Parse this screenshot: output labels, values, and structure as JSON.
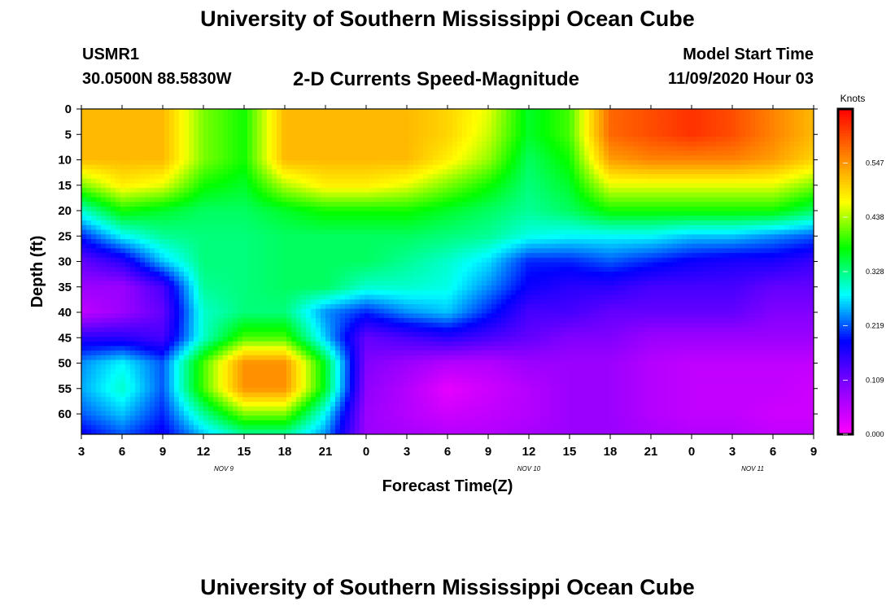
{
  "header": {
    "title": "University of Southern Mississippi Ocean Cube",
    "station": "USMR1",
    "coords": "30.0500N 88.5830W",
    "subtitle": "2-D Currents Speed-Magnitude",
    "start_label": "Model Start Time",
    "start_value": "11/09/2020 Hour 03"
  },
  "footer": {
    "title": "University of Southern Mississippi Ocean Cube"
  },
  "chart_data": {
    "type": "heatmap",
    "title": "2-D Currents Speed-Magnitude",
    "xlabel": "Forecast Time(Z)",
    "ylabel": "Depth (ft)",
    "x_tick_labels": [
      "3",
      "6",
      "9",
      "12",
      "15",
      "18",
      "21",
      "0",
      "3",
      "6",
      "9",
      "12",
      "15",
      "18",
      "21",
      "0",
      "3",
      "6",
      "9"
    ],
    "day_labels": [
      {
        "label": "NOV  9",
        "tick_index": 3.5
      },
      {
        "label": "NOV  10",
        "tick_index": 11
      },
      {
        "label": "NOV  11",
        "tick_index": 16.5
      }
    ],
    "y_ticks": [
      0,
      5,
      10,
      15,
      20,
      25,
      30,
      35,
      40,
      45,
      50,
      55,
      60
    ],
    "ylim": [
      64,
      0
    ],
    "colorbar": {
      "label": "Knots",
      "ticks": [
        "0.547",
        "0.438",
        "0.328",
        "0.219",
        "0.109",
        "0.000"
      ],
      "range": [
        0.0,
        0.656
      ],
      "colors": [
        "#ff00ff",
        "#8a00ff",
        "#0000ff",
        "#00ffff",
        "#00ff00",
        "#ffff00",
        "#ff8000",
        "#ff0000"
      ]
    },
    "x_hours_from_start": [
      0,
      3,
      6,
      9,
      12,
      15,
      18,
      21,
      24,
      27,
      30,
      33,
      36,
      39,
      42,
      45,
      48,
      51,
      54
    ],
    "depths_ft": [
      0,
      5,
      10,
      15,
      20,
      25,
      30,
      35,
      40,
      45,
      50,
      55,
      60,
      64
    ],
    "values": [
      [
        0.52,
        0.52,
        0.52,
        0.42,
        0.38,
        0.52,
        0.52,
        0.52,
        0.52,
        0.5,
        0.46,
        0.36,
        0.4,
        0.58,
        0.6,
        0.62,
        0.6,
        0.56,
        0.52
      ],
      [
        0.52,
        0.52,
        0.52,
        0.42,
        0.38,
        0.52,
        0.52,
        0.52,
        0.52,
        0.5,
        0.45,
        0.36,
        0.4,
        0.58,
        0.6,
        0.62,
        0.6,
        0.56,
        0.52
      ],
      [
        0.52,
        0.52,
        0.52,
        0.42,
        0.38,
        0.52,
        0.52,
        0.52,
        0.52,
        0.48,
        0.43,
        0.34,
        0.38,
        0.54,
        0.56,
        0.56,
        0.56,
        0.54,
        0.5
      ],
      [
        0.42,
        0.48,
        0.46,
        0.38,
        0.36,
        0.44,
        0.48,
        0.48,
        0.46,
        0.42,
        0.38,
        0.33,
        0.36,
        0.46,
        0.46,
        0.46,
        0.46,
        0.46,
        0.42
      ],
      [
        0.3,
        0.38,
        0.36,
        0.34,
        0.34,
        0.36,
        0.38,
        0.38,
        0.38,
        0.36,
        0.34,
        0.32,
        0.34,
        0.38,
        0.38,
        0.38,
        0.38,
        0.38,
        0.34
      ],
      [
        0.2,
        0.28,
        0.32,
        0.33,
        0.33,
        0.34,
        0.34,
        0.34,
        0.34,
        0.33,
        0.32,
        0.29,
        0.28,
        0.28,
        0.28,
        0.26,
        0.26,
        0.24,
        0.22
      ],
      [
        0.12,
        0.16,
        0.26,
        0.33,
        0.33,
        0.34,
        0.34,
        0.34,
        0.32,
        0.3,
        0.27,
        0.2,
        0.2,
        0.22,
        0.2,
        0.18,
        0.17,
        0.17,
        0.15
      ],
      [
        0.08,
        0.08,
        0.14,
        0.32,
        0.33,
        0.34,
        0.34,
        0.3,
        0.3,
        0.29,
        0.24,
        0.18,
        0.16,
        0.16,
        0.14,
        0.14,
        0.14,
        0.12,
        0.12
      ],
      [
        0.05,
        0.08,
        0.12,
        0.3,
        0.33,
        0.33,
        0.24,
        0.2,
        0.24,
        0.26,
        0.2,
        0.14,
        0.14,
        0.12,
        0.12,
        0.12,
        0.12,
        0.1,
        0.1
      ],
      [
        0.16,
        0.16,
        0.14,
        0.3,
        0.4,
        0.4,
        0.26,
        0.12,
        0.14,
        0.16,
        0.14,
        0.12,
        0.1,
        0.1,
        0.08,
        0.08,
        0.08,
        0.08,
        0.08
      ],
      [
        0.24,
        0.28,
        0.22,
        0.4,
        0.55,
        0.55,
        0.36,
        0.1,
        0.08,
        0.06,
        0.06,
        0.08,
        0.08,
        0.08,
        0.06,
        0.05,
        0.05,
        0.05,
        0.05
      ],
      [
        0.25,
        0.3,
        0.22,
        0.4,
        0.55,
        0.55,
        0.36,
        0.09,
        0.06,
        0.02,
        0.04,
        0.06,
        0.08,
        0.08,
        0.06,
        0.05,
        0.05,
        0.05,
        0.04
      ],
      [
        0.22,
        0.26,
        0.2,
        0.32,
        0.42,
        0.42,
        0.28,
        0.08,
        0.06,
        0.04,
        0.05,
        0.06,
        0.08,
        0.08,
        0.06,
        0.05,
        0.05,
        0.04,
        0.04
      ],
      [
        0.18,
        0.22,
        0.18,
        0.26,
        0.32,
        0.32,
        0.24,
        0.08,
        0.07,
        0.06,
        0.06,
        0.07,
        0.08,
        0.08,
        0.07,
        0.06,
        0.06,
        0.05,
        0.05
      ]
    ]
  }
}
